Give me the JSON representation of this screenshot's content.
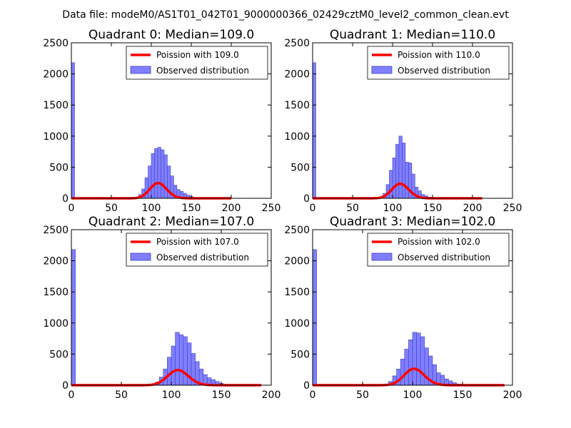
{
  "figure": {
    "suptitle": "Data file: modeM0/AS1T01_042T01_9000000366_02429cztM0_level2_common_clean.evt"
  },
  "chart_data": [
    {
      "type": "bar",
      "title": "Quadrant 0: Median=109.0",
      "xlim": [
        0,
        250
      ],
      "ylim": [
        0,
        2500
      ],
      "xticks": [
        "0",
        "50",
        "100",
        "150",
        "200",
        "250"
      ],
      "yticks": [
        "0",
        "500",
        "1000",
        "1500",
        "2000",
        "2500"
      ],
      "bin_width": 4,
      "bins": [
        [
          0,
          2180
        ],
        [
          80,
          20
        ],
        [
          84,
          60
        ],
        [
          88,
          150
        ],
        [
          92,
          330
        ],
        [
          96,
          520
        ],
        [
          100,
          720
        ],
        [
          104,
          800
        ],
        [
          108,
          820
        ],
        [
          112,
          780
        ],
        [
          116,
          700
        ],
        [
          120,
          520
        ],
        [
          124,
          360
        ],
        [
          128,
          210
        ],
        [
          132,
          140
        ],
        [
          136,
          110
        ],
        [
          140,
          80
        ],
        [
          144,
          50
        ],
        [
          148,
          30
        ],
        [
          152,
          15
        ],
        [
          156,
          8
        ]
      ],
      "series": [
        {
          "name": "Poission with 109.0",
          "type": "line",
          "color": "#ff0000",
          "mu": 109.0,
          "x_range": [
            0,
            200
          ]
        },
        {
          "name": "Observed distribution",
          "type": "bar",
          "color": "#7f7fff"
        }
      ],
      "legend": "top-right"
    },
    {
      "type": "bar",
      "title": "Quadrant 1: Median=110.0",
      "xlim": [
        0,
        250
      ],
      "ylim": [
        0,
        2500
      ],
      "xticks": [
        "0",
        "50",
        "100",
        "150",
        "200",
        "250"
      ],
      "yticks": [
        "0",
        "500",
        "1000",
        "1500",
        "2000",
        "2500"
      ],
      "bin_width": 4,
      "bins": [
        [
          0,
          2180
        ],
        [
          84,
          20
        ],
        [
          88,
          80
        ],
        [
          92,
          220
        ],
        [
          96,
          450
        ],
        [
          100,
          650
        ],
        [
          104,
          870
        ],
        [
          108,
          1000
        ],
        [
          112,
          890
        ],
        [
          116,
          580
        ],
        [
          120,
          570
        ],
        [
          124,
          390
        ],
        [
          128,
          180
        ],
        [
          132,
          120
        ],
        [
          136,
          60
        ],
        [
          140,
          40
        ],
        [
          144,
          20
        ],
        [
          148,
          10
        ]
      ],
      "series": [
        {
          "name": "Poission with 110.0",
          "type": "line",
          "color": "#ff0000",
          "mu": 110.0,
          "x_range": [
            0,
            212
          ]
        },
        {
          "name": "Observed distribution",
          "type": "bar",
          "color": "#7f7fff"
        }
      ],
      "legend": "top-right"
    },
    {
      "type": "bar",
      "title": "Quadrant 2: Median=107.0",
      "xlim": [
        0,
        200
      ],
      "ylim": [
        0,
        2500
      ],
      "xticks": [
        "0",
        "50",
        "100",
        "150",
        "200"
      ],
      "yticks": [
        "0",
        "500",
        "1000",
        "1500",
        "2000",
        "2500"
      ],
      "bin_width": 4,
      "bins": [
        [
          0,
          2180
        ],
        [
          80,
          20
        ],
        [
          84,
          50
        ],
        [
          88,
          130
        ],
        [
          92,
          260
        ],
        [
          96,
          450
        ],
        [
          100,
          630
        ],
        [
          104,
          850
        ],
        [
          108,
          810
        ],
        [
          112,
          780
        ],
        [
          116,
          680
        ],
        [
          120,
          510
        ],
        [
          124,
          380
        ],
        [
          128,
          260
        ],
        [
          132,
          170
        ],
        [
          136,
          120
        ],
        [
          140,
          90
        ],
        [
          144,
          60
        ],
        [
          148,
          30
        ],
        [
          152,
          15
        ]
      ],
      "series": [
        {
          "name": "Poission with 107.0",
          "type": "line",
          "color": "#ff0000",
          "mu": 107.0,
          "x_range": [
            0,
            190
          ]
        },
        {
          "name": "Observed distribution",
          "type": "bar",
          "color": "#7f7fff"
        }
      ],
      "legend": "top-right"
    },
    {
      "type": "bar",
      "title": "Quadrant 3: Median=102.0",
      "xlim": [
        0,
        200
      ],
      "ylim": [
        0,
        2500
      ],
      "xticks": [
        "0",
        "50",
        "100",
        "150",
        "200"
      ],
      "yticks": [
        "0",
        "500",
        "1000",
        "1500",
        "2000",
        "2500"
      ],
      "bin_width": 4,
      "bins": [
        [
          0,
          2180
        ],
        [
          72,
          20
        ],
        [
          76,
          60
        ],
        [
          80,
          150
        ],
        [
          84,
          260
        ],
        [
          88,
          420
        ],
        [
          92,
          580
        ],
        [
          96,
          730
        ],
        [
          100,
          850
        ],
        [
          104,
          840
        ],
        [
          108,
          780
        ],
        [
          112,
          600
        ],
        [
          116,
          470
        ],
        [
          120,
          330
        ],
        [
          124,
          200
        ],
        [
          128,
          160
        ],
        [
          132,
          100
        ],
        [
          136,
          70
        ],
        [
          140,
          40
        ],
        [
          144,
          20
        ]
      ],
      "series": [
        {
          "name": "Poission with 102.0",
          "type": "line",
          "color": "#ff0000",
          "mu": 102.0,
          "x_range": [
            0,
            192
          ]
        },
        {
          "name": "Observed distribution",
          "type": "bar",
          "color": "#7f7fff"
        }
      ],
      "legend": "top-right"
    }
  ]
}
